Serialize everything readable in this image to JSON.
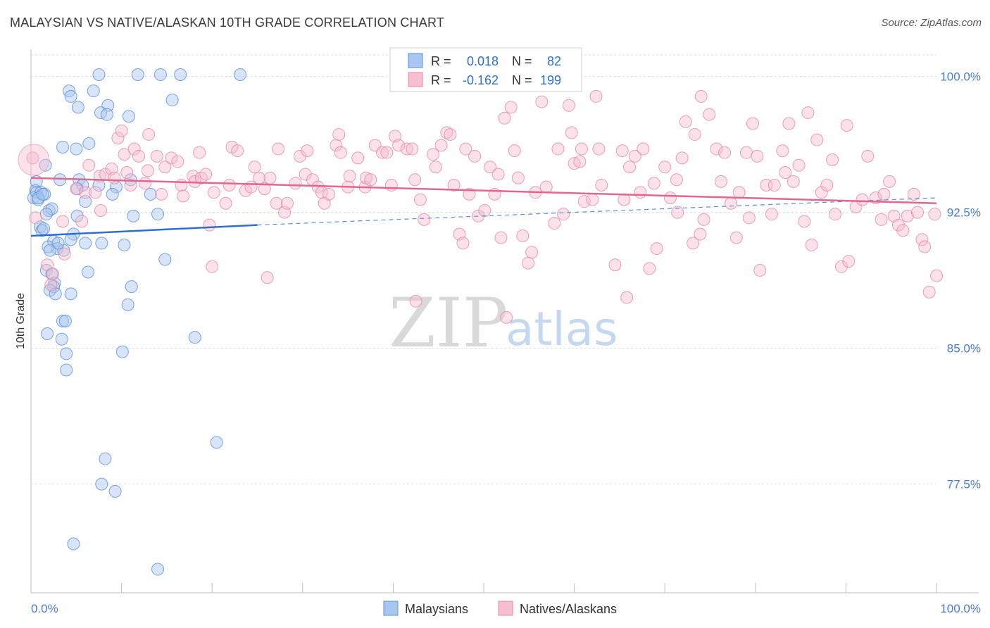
{
  "header": {
    "title": "MALAYSIAN VS NATIVE/ALASKAN 10TH GRADE CORRELATION CHART",
    "source": "Source: ZipAtlas.com"
  },
  "watermark": {
    "zip": "ZIP",
    "atlas": "atlas"
  },
  "stats": [
    {
      "r_label": "R =",
      "r_value": "0.018",
      "n_label": "N =",
      "n_value": "82",
      "color": "#a8c6f0",
      "stroke": "#5b8fd6"
    },
    {
      "r_label": "R =",
      "r_value": "-0.162",
      "n_label": "N =",
      "n_value": "199",
      "color": "#f7bdd0",
      "stroke": "#e48aa8"
    }
  ],
  "legend": [
    {
      "label": "Malaysians",
      "color": "#a8c6f0",
      "stroke": "#5b8fd6"
    },
    {
      "label": "Natives/Alaskans",
      "color": "#f7bdd0",
      "stroke": "#e48aa8"
    }
  ],
  "chart_data": {
    "type": "scatter",
    "title": "MALAYSIAN VS NATIVE/ALASKAN 10TH GRADE CORRELATION CHART",
    "xlabel": "",
    "ylabel": "10th Grade",
    "xlim": [
      0,
      100
    ],
    "ylim": [
      71.5,
      101.5
    ],
    "x_tick_labels": [
      "0.0%",
      "100.0%"
    ],
    "y_ticks": [
      77.5,
      85.0,
      92.5,
      100.0
    ],
    "y_tick_labels": [
      "77.5%",
      "85.0%",
      "92.5%",
      "100.0%"
    ],
    "grid": true,
    "legend_position": "bottom-center",
    "series": [
      {
        "name": "Malaysians",
        "color": "#a8c6f0",
        "stroke": "#5b8fd6",
        "trend": {
          "x": [
            0,
            25
          ],
          "y": [
            91.2,
            91.8
          ],
          "dashed_to": [
            100,
            93.3
          ]
        },
        "points": [
          [
            7.5,
            100.1
          ],
          [
            11.8,
            100.1
          ],
          [
            14.3,
            100.1
          ],
          [
            16.5,
            100.1
          ],
          [
            23.1,
            100.1
          ],
          [
            4.2,
            99.2
          ],
          [
            6.9,
            99.2
          ],
          [
            4.4,
            98.9
          ],
          [
            15.6,
            98.7
          ],
          [
            5.2,
            98.3
          ],
          [
            8.5,
            98.4
          ],
          [
            7.7,
            98.0
          ],
          [
            8.4,
            97.9
          ],
          [
            10.8,
            97.8
          ],
          [
            3.5,
            96.1
          ],
          [
            5.0,
            96.0
          ],
          [
            6.4,
            96.3
          ],
          [
            1.6,
            95.1
          ],
          [
            11.0,
            94.3
          ],
          [
            5.3,
            94.3
          ],
          [
            3.2,
            94.3
          ],
          [
            0.6,
            94.2
          ],
          [
            5.7,
            94.0
          ],
          [
            7.5,
            94.0
          ],
          [
            9.4,
            93.9
          ],
          [
            5.1,
            93.8
          ],
          [
            0.5,
            93.7
          ],
          [
            0.6,
            93.6
          ],
          [
            1.1,
            93.6
          ],
          [
            1.5,
            93.5
          ],
          [
            9.0,
            93.5
          ],
          [
            13.2,
            93.5
          ],
          [
            0.3,
            93.3
          ],
          [
            0.8,
            93.2
          ],
          [
            6.0,
            93.1
          ],
          [
            2.0,
            92.6
          ],
          [
            2.3,
            92.7
          ],
          [
            1.7,
            92.4
          ],
          [
            5.1,
            92.3
          ],
          [
            11.3,
            92.3
          ],
          [
            14.0,
            92.4
          ],
          [
            1.0,
            91.7
          ],
          [
            1.2,
            91.5
          ],
          [
            4.7,
            91.3
          ],
          [
            4.4,
            91.0
          ],
          [
            2.5,
            90.9
          ],
          [
            6.0,
            90.8
          ],
          [
            7.8,
            90.8
          ],
          [
            10.3,
            90.7
          ],
          [
            2.9,
            90.5
          ],
          [
            3.6,
            90.4
          ],
          [
            1.9,
            90.6
          ],
          [
            2.1,
            90.4
          ],
          [
            14.8,
            89.9
          ],
          [
            1.7,
            89.3
          ],
          [
            2.3,
            89.1
          ],
          [
            6.3,
            89.2
          ],
          [
            2.6,
            88.6
          ],
          [
            2.5,
            88.4
          ],
          [
            11.1,
            88.4
          ],
          [
            2.1,
            88.2
          ],
          [
            4.4,
            88.0
          ],
          [
            2.7,
            88.0
          ],
          [
            10.7,
            87.4
          ],
          [
            3.5,
            86.5
          ],
          [
            3.8,
            86.5
          ],
          [
            1.8,
            85.8
          ],
          [
            18.1,
            85.6
          ],
          [
            3.4,
            85.5
          ],
          [
            3.9,
            84.7
          ],
          [
            10.1,
            84.8
          ],
          [
            3.9,
            83.8
          ],
          [
            20.5,
            79.8
          ],
          [
            8.2,
            78.9
          ],
          [
            7.8,
            77.5
          ],
          [
            9.3,
            77.1
          ],
          [
            4.7,
            74.2
          ],
          [
            14.0,
            72.8
          ],
          [
            1.4,
            91.6
          ],
          [
            0.8,
            93.3
          ],
          [
            3.0,
            90.8
          ],
          [
            1.3,
            93.5
          ]
        ]
      },
      {
        "name": "Natives/Alaskans",
        "color": "#f7bdd0",
        "stroke": "#e48aa8",
        "trend": {
          "x": [
            0,
            100
          ],
          "y": [
            94.4,
            93.0
          ]
        },
        "points": [
          [
            0.2,
            95.5
          ],
          [
            0.5,
            92.2
          ],
          [
            1.8,
            89.6
          ],
          [
            2.4,
            89.1
          ],
          [
            2.2,
            88.5
          ],
          [
            3.5,
            92.0
          ],
          [
            3.7,
            90.2
          ],
          [
            5.0,
            93.8
          ],
          [
            5.6,
            92.0
          ],
          [
            6.4,
            95.1
          ],
          [
            6.0,
            93.6
          ],
          [
            7.1,
            93.6
          ],
          [
            7.7,
            92.6
          ],
          [
            7.6,
            94.5
          ],
          [
            8.2,
            94.6
          ],
          [
            8.9,
            94.9
          ],
          [
            9.2,
            94.4
          ],
          [
            9.6,
            96.6
          ],
          [
            10.0,
            97.0
          ],
          [
            10.3,
            95.7
          ],
          [
            10.6,
            94.7
          ],
          [
            11.0,
            94.0
          ],
          [
            11.4,
            96.0
          ],
          [
            11.9,
            95.6
          ],
          [
            12.6,
            94.1
          ],
          [
            12.9,
            94.8
          ],
          [
            13.0,
            96.8
          ],
          [
            13.9,
            95.6
          ],
          [
            14.4,
            93.5
          ],
          [
            14.8,
            95.0
          ],
          [
            15.5,
            95.5
          ],
          [
            16.2,
            95.3
          ],
          [
            16.6,
            94.0
          ],
          [
            16.8,
            93.4
          ],
          [
            17.9,
            94.5
          ],
          [
            18.1,
            94.2
          ],
          [
            18.6,
            95.8
          ],
          [
            18.8,
            94.4
          ],
          [
            19.3,
            94.6
          ],
          [
            19.7,
            91.8
          ],
          [
            20.0,
            89.5
          ],
          [
            20.2,
            93.6
          ],
          [
            21.5,
            93.0
          ],
          [
            21.9,
            94.0
          ],
          [
            22.2,
            96.1
          ],
          [
            22.8,
            95.9
          ],
          [
            23.7,
            93.7
          ],
          [
            24.3,
            93.9
          ],
          [
            24.7,
            95.0
          ],
          [
            25.2,
            94.4
          ],
          [
            25.8,
            93.8
          ],
          [
            26.1,
            88.9
          ],
          [
            26.4,
            94.4
          ],
          [
            27.1,
            93.0
          ],
          [
            27.3,
            96.0
          ],
          [
            28.0,
            92.5
          ],
          [
            28.3,
            93.0
          ],
          [
            29.2,
            94.1
          ],
          [
            29.7,
            95.6
          ],
          [
            30.3,
            94.6
          ],
          [
            30.5,
            95.9
          ],
          [
            31.1,
            94.3
          ],
          [
            31.7,
            93.9
          ],
          [
            32.1,
            93.6
          ],
          [
            32.4,
            93.0
          ],
          [
            32.9,
            93.5
          ],
          [
            33.7,
            96.2
          ],
          [
            34.0,
            96.8
          ],
          [
            34.2,
            95.8
          ],
          [
            35.0,
            93.9
          ],
          [
            35.2,
            94.5
          ],
          [
            36.1,
            95.5
          ],
          [
            36.9,
            93.9
          ],
          [
            37.0,
            94.4
          ],
          [
            37.5,
            94.3
          ],
          [
            38.0,
            96.2
          ],
          [
            38.8,
            95.8
          ],
          [
            39.3,
            95.8
          ],
          [
            39.8,
            94.0
          ],
          [
            40.2,
            96.7
          ],
          [
            40.6,
            96.2
          ],
          [
            41.5,
            96.0
          ],
          [
            42.1,
            96.0
          ],
          [
            42.4,
            94.3
          ],
          [
            42.5,
            87.6
          ],
          [
            43.0,
            93.2
          ],
          [
            43.4,
            92.1
          ],
          [
            44.4,
            95.7
          ],
          [
            44.7,
            95.0
          ],
          [
            45.3,
            96.2
          ],
          [
            45.9,
            96.9
          ],
          [
            46.3,
            96.8
          ],
          [
            46.7,
            94.0
          ],
          [
            47.3,
            91.3
          ],
          [
            47.7,
            90.8
          ],
          [
            48.0,
            96.0
          ],
          [
            48.4,
            93.5
          ],
          [
            49.0,
            95.6
          ],
          [
            49.4,
            92.3
          ],
          [
            50.1,
            92.6
          ],
          [
            50.7,
            95.0
          ],
          [
            51.2,
            93.5
          ],
          [
            51.6,
            94.6
          ],
          [
            51.9,
            91.1
          ],
          [
            52.3,
            97.7
          ],
          [
            52.5,
            86.7
          ],
          [
            53.0,
            98.3
          ],
          [
            53.4,
            95.9
          ],
          [
            53.8,
            94.4
          ],
          [
            54.3,
            91.2
          ],
          [
            54.9,
            89.7
          ],
          [
            55.3,
            90.3
          ],
          [
            55.7,
            93.6
          ],
          [
            56.4,
            98.6
          ],
          [
            56.9,
            93.9
          ],
          [
            57.8,
            91.9
          ],
          [
            58.2,
            96.0
          ],
          [
            58.8,
            92.4
          ],
          [
            59.4,
            98.4
          ],
          [
            59.7,
            96.9
          ],
          [
            60.0,
            95.2
          ],
          [
            60.6,
            95.3
          ],
          [
            60.8,
            96.0
          ],
          [
            61.1,
            93.1
          ],
          [
            62.0,
            93.2
          ],
          [
            62.4,
            98.9
          ],
          [
            62.7,
            96.0
          ],
          [
            63.0,
            94.0
          ],
          [
            64.5,
            89.6
          ],
          [
            65.3,
            95.9
          ],
          [
            65.5,
            93.2
          ],
          [
            65.8,
            87.8
          ],
          [
            66.1,
            95.0
          ],
          [
            66.7,
            95.6
          ],
          [
            67.3,
            93.6
          ],
          [
            67.6,
            96.0
          ],
          [
            68.3,
            89.4
          ],
          [
            68.8,
            94.1
          ],
          [
            69.1,
            90.5
          ],
          [
            70.0,
            95.0
          ],
          [
            70.6,
            93.3
          ],
          [
            71.3,
            94.3
          ],
          [
            71.4,
            92.5
          ],
          [
            71.9,
            95.5
          ],
          [
            72.3,
            97.5
          ],
          [
            73.1,
            90.8
          ],
          [
            73.3,
            96.8
          ],
          [
            73.9,
            91.3
          ],
          [
            74.0,
            98.9
          ],
          [
            74.3,
            92.1
          ],
          [
            74.9,
            97.9
          ],
          [
            75.7,
            96.0
          ],
          [
            76.2,
            94.2
          ],
          [
            76.6,
            95.8
          ],
          [
            77.3,
            93.0
          ],
          [
            77.9,
            91.1
          ],
          [
            78.2,
            93.6
          ],
          [
            79.0,
            95.8
          ],
          [
            79.3,
            92.2
          ],
          [
            79.7,
            97.4
          ],
          [
            80.2,
            95.6
          ],
          [
            80.5,
            89.3
          ],
          [
            81.2,
            94.0
          ],
          [
            81.8,
            92.4
          ],
          [
            82.1,
            94.0
          ],
          [
            83.0,
            95.9
          ],
          [
            83.3,
            94.7
          ],
          [
            83.7,
            97.4
          ],
          [
            84.2,
            94.2
          ],
          [
            84.8,
            95.1
          ],
          [
            85.4,
            92.0
          ],
          [
            85.8,
            98.0
          ],
          [
            86.2,
            90.7
          ],
          [
            86.8,
            96.5
          ],
          [
            87.3,
            93.6
          ],
          [
            87.9,
            94.0
          ],
          [
            88.5,
            95.4
          ],
          [
            88.8,
            92.4
          ],
          [
            89.5,
            89.5
          ],
          [
            90.1,
            97.3
          ],
          [
            90.3,
            89.8
          ],
          [
            91.1,
            92.8
          ],
          [
            91.8,
            93.2
          ],
          [
            92.4,
            95.6
          ],
          [
            93.3,
            93.3
          ],
          [
            93.9,
            92.1
          ],
          [
            94.2,
            93.5
          ],
          [
            94.8,
            94.2
          ],
          [
            95.3,
            92.3
          ],
          [
            95.8,
            91.8
          ],
          [
            96.3,
            91.5
          ],
          [
            96.8,
            92.3
          ],
          [
            97.5,
            93.5
          ],
          [
            97.9,
            92.5
          ],
          [
            98.4,
            91.0
          ],
          [
            98.7,
            90.6
          ],
          [
            99.2,
            88.1
          ],
          [
            99.8,
            92.4
          ],
          [
            100.0,
            89.0
          ]
        ]
      }
    ]
  }
}
